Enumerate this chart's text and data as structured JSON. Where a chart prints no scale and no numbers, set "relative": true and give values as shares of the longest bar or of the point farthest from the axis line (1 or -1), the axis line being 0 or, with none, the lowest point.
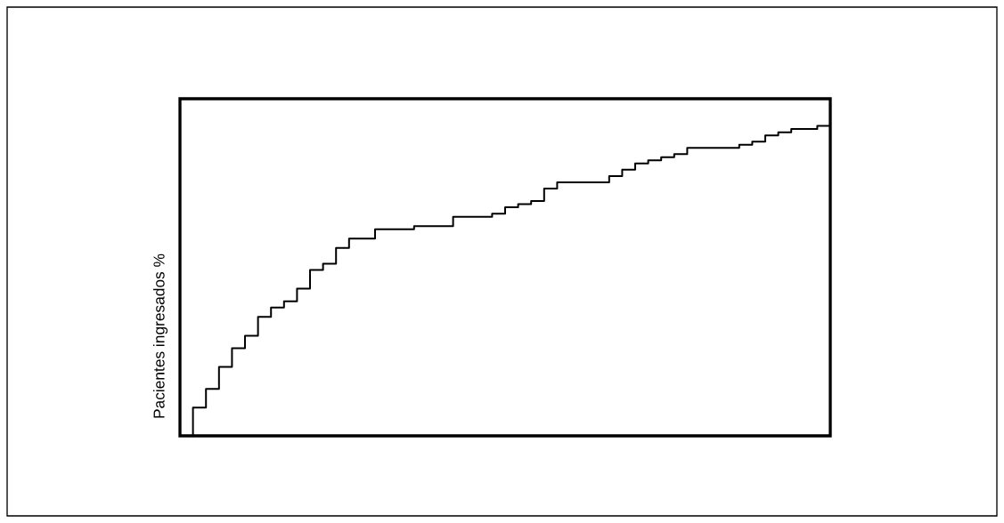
{
  "chart_data": {
    "type": "step",
    "ylabel": "Pacientes ingresados %",
    "relative": true,
    "color": "#000000",
    "categories": [
      null,
      null,
      null,
      null,
      null,
      null,
      null,
      null,
      null,
      null,
      null,
      null,
      null,
      null,
      null,
      null,
      null,
      null,
      null,
      null,
      null,
      null,
      null,
      null,
      null,
      null,
      null,
      null,
      null,
      null,
      null,
      null,
      null,
      null,
      null,
      null,
      null,
      null,
      null,
      null,
      null,
      null,
      null,
      null,
      null,
      null,
      null,
      null,
      null,
      null,
      null
    ],
    "values": [
      0,
      0.09,
      0.15,
      0.22,
      0.28,
      0.32,
      0.38,
      0.41,
      0.43,
      0.47,
      0.53,
      0.55,
      0.6,
      0.63,
      0.63,
      0.66,
      0.66,
      0.66,
      0.67,
      0.67,
      0.67,
      0.7,
      0.7,
      0.7,
      0.71,
      0.73,
      0.74,
      0.75,
      0.79,
      0.81,
      0.81,
      0.81,
      0.81,
      0.83,
      0.85,
      0.87,
      0.88,
      0.89,
      0.9,
      0.92,
      0.92,
      0.92,
      0.92,
      0.93,
      0.94,
      0.96,
      0.97,
      0.98,
      0.98,
      0.99,
      1
    ]
  }
}
